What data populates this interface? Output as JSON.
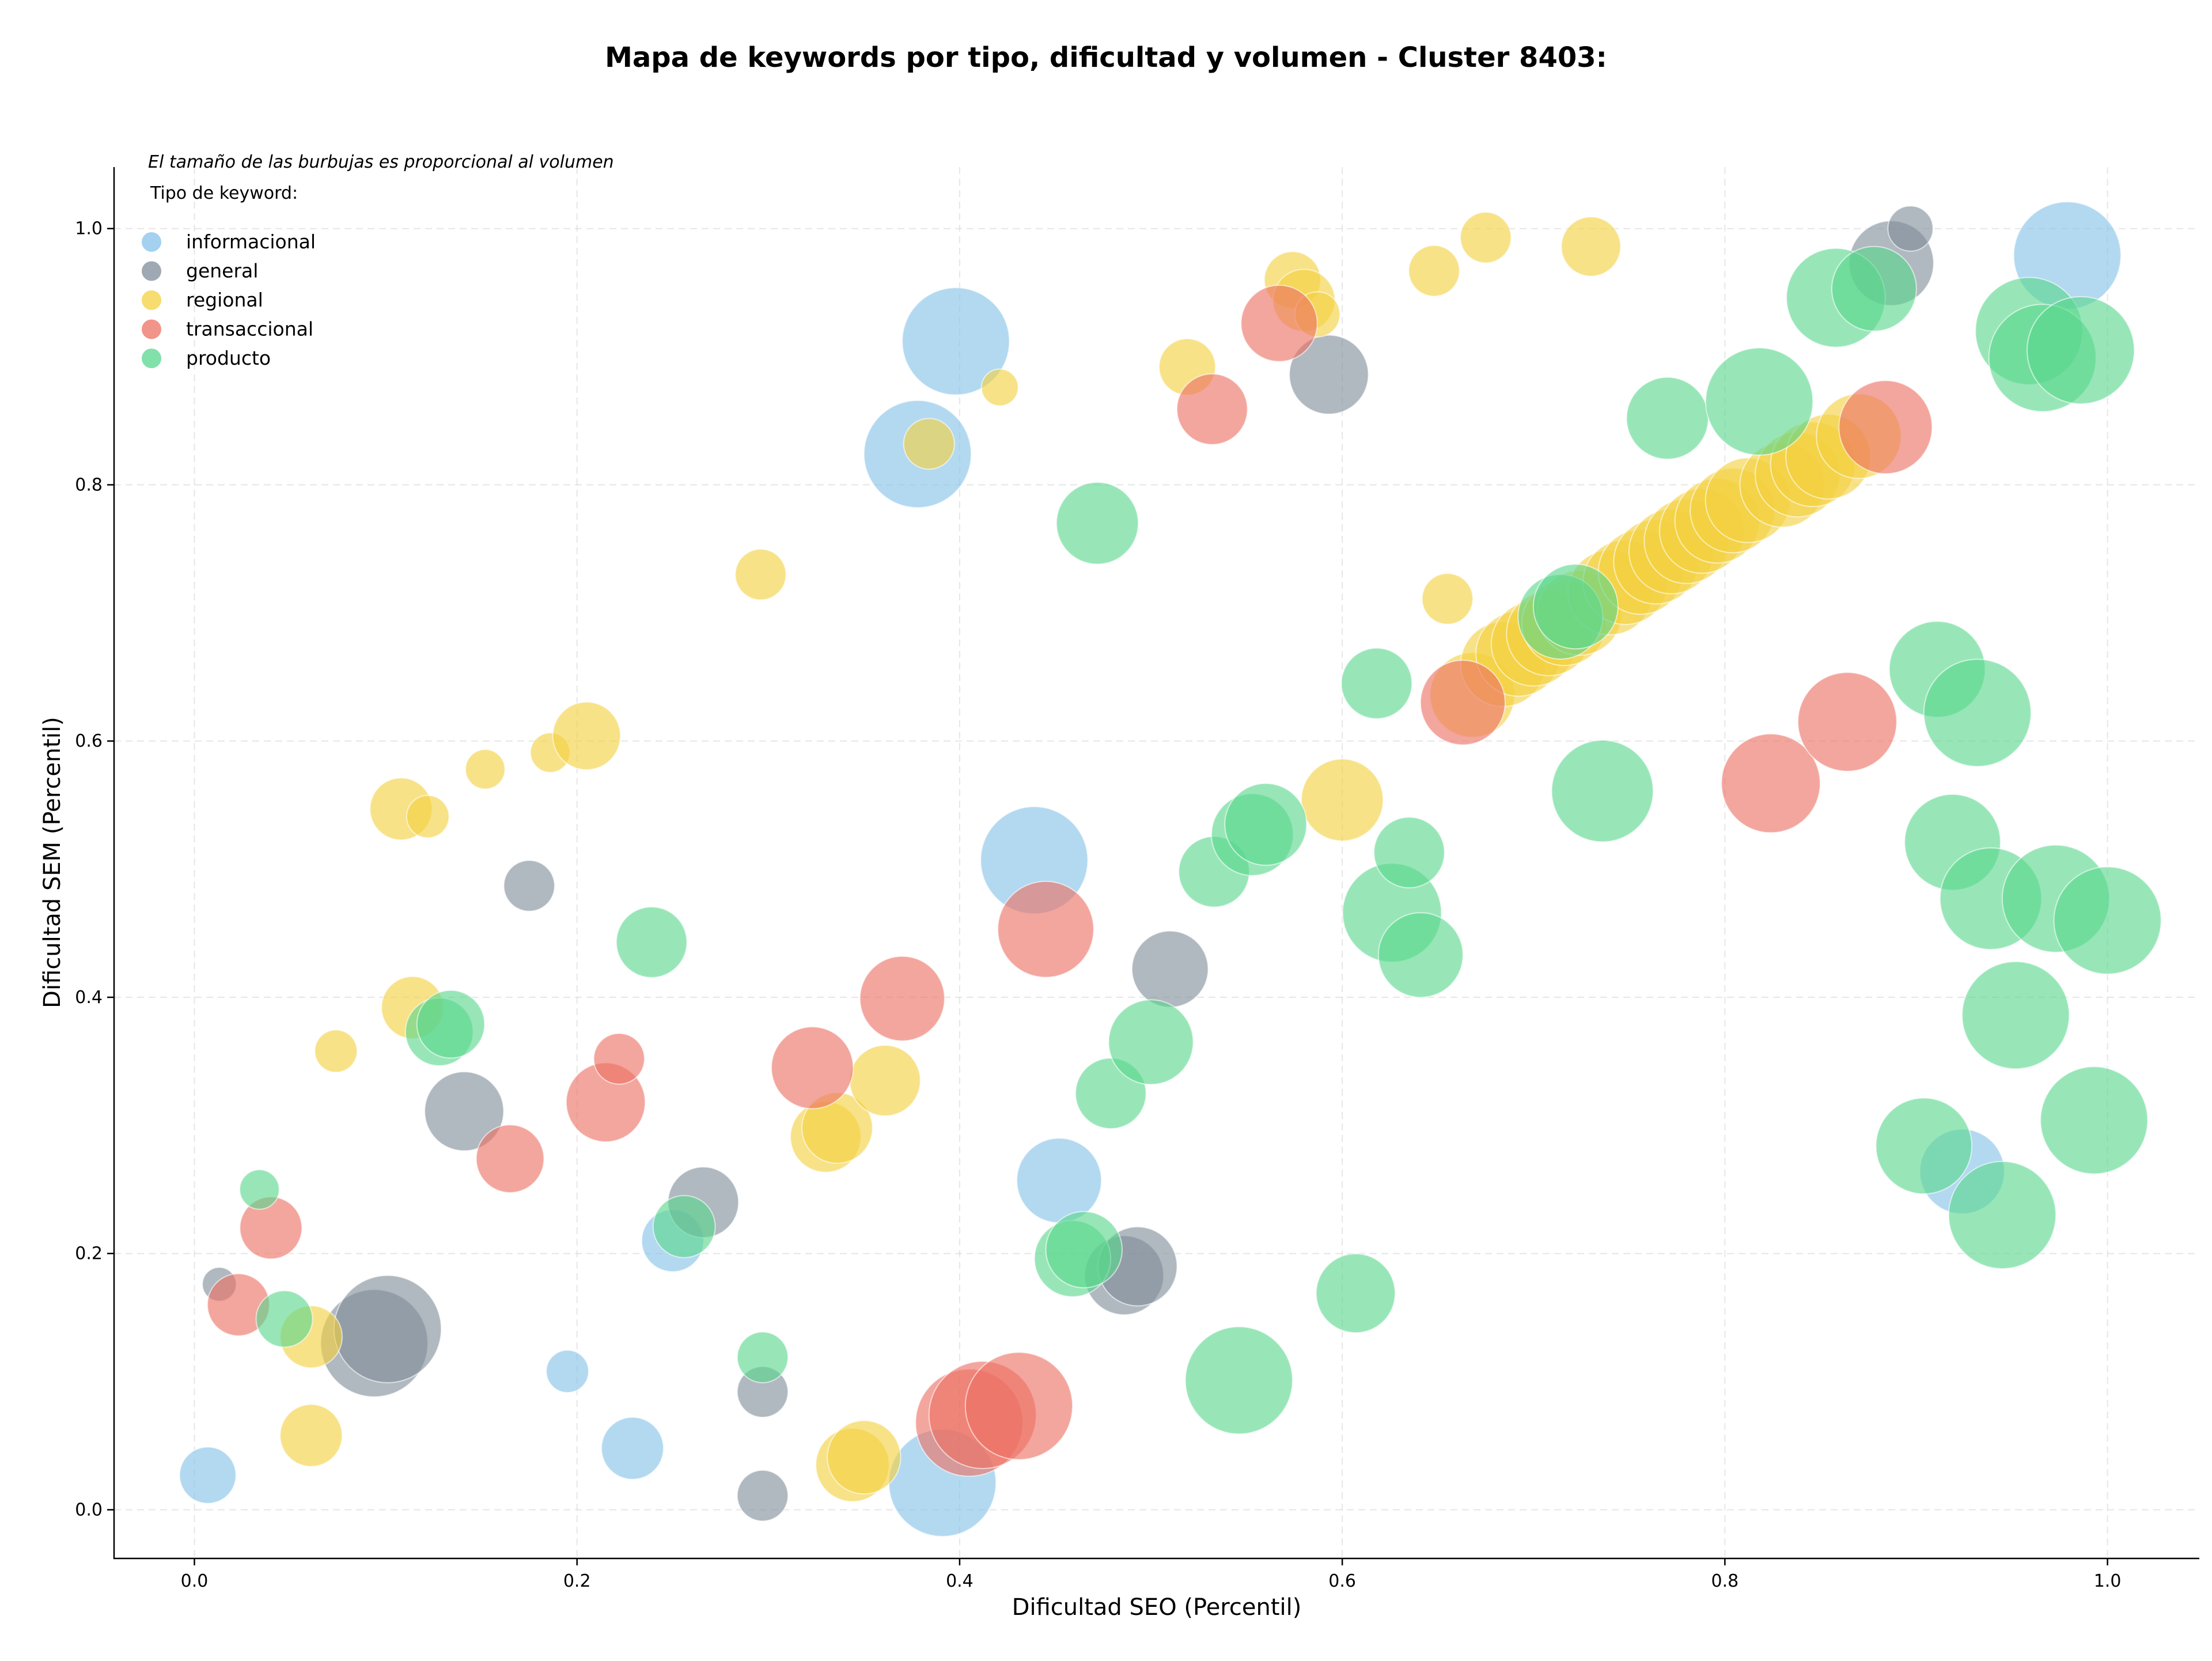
{
  "chart_data": {
    "type": "scatter",
    "title": "Mapa de keywords por tipo, dificultad y volumen - Cluster 8403:",
    "xlabel": "Dificultad SEO (Percentil)",
    "ylabel": "Dificultad SEM (Percentil)",
    "note": "El tamaño de las burbujas es proporcional al volumen",
    "legend_title": "Tipo de keyword:",
    "legend_position": "top-left",
    "grid": true,
    "xlim": [
      -0.042,
      1.048
    ],
    "ylim": [
      -0.038,
      1.048
    ],
    "xticks": [
      "0.0",
      "0.2",
      "0.4",
      "0.6",
      "0.8",
      "1.0"
    ],
    "yticks": [
      "0.0",
      "0.2",
      "0.4",
      "0.6",
      "0.8",
      "1.0"
    ],
    "series": [
      {
        "name": "informacional",
        "color": "#85c1e9",
        "points": [
          [
            0.007,
            0.027,
            20
          ],
          [
            0.195,
            0.108,
            15
          ],
          [
            0.229,
            0.048,
            22
          ],
          [
            0.25,
            0.21,
            22
          ],
          [
            0.398,
            0.912,
            38
          ],
          [
            0.378,
            0.824,
            38
          ],
          [
            0.391,
            0.021,
            38
          ],
          [
            0.439,
            0.507,
            38
          ],
          [
            0.452,
            0.257,
            30
          ],
          [
            0.924,
            0.264,
            30
          ],
          [
            0.979,
            0.979,
            38
          ]
        ]
      },
      {
        "name": "general",
        "color": "#7f8c9a",
        "points": [
          [
            0.013,
            0.176,
            12
          ],
          [
            0.094,
            0.13,
            38
          ],
          [
            0.101,
            0.141,
            38
          ],
          [
            0.141,
            0.311,
            28
          ],
          [
            0.175,
            0.487,
            18
          ],
          [
            0.266,
            0.24,
            25
          ],
          [
            0.297,
            0.092,
            18
          ],
          [
            0.297,
            0.011,
            18
          ],
          [
            0.486,
            0.183,
            28
          ],
          [
            0.493,
            0.19,
            28
          ],
          [
            0.51,
            0.422,
            27
          ],
          [
            0.593,
            0.886,
            28
          ],
          [
            0.887,
            0.973,
            30
          ],
          [
            0.897,
            1.0,
            16
          ]
        ]
      },
      {
        "name": "regional",
        "color": "#f4d03f",
        "points": [
          [
            0.061,
            0.135,
            22
          ],
          [
            0.061,
            0.058,
            22
          ],
          [
            0.074,
            0.358,
            15
          ],
          [
            0.108,
            0.547,
            22
          ],
          [
            0.114,
            0.392,
            22
          ],
          [
            0.122,
            0.541,
            15
          ],
          [
            0.152,
            0.578,
            14
          ],
          [
            0.186,
            0.591,
            14
          ],
          [
            0.205,
            0.604,
            24
          ],
          [
            0.296,
            0.73,
            18
          ],
          [
            0.33,
            0.291,
            25
          ],
          [
            0.336,
            0.298,
            25
          ],
          [
            0.344,
            0.035,
            26
          ],
          [
            0.35,
            0.041,
            26
          ],
          [
            0.361,
            0.335,
            25
          ],
          [
            0.384,
            0.832,
            18
          ],
          [
            0.421,
            0.876,
            13
          ],
          [
            0.519,
            0.892,
            20
          ],
          [
            0.574,
            0.96,
            20
          ],
          [
            0.58,
            0.944,
            22
          ],
          [
            0.587,
            0.933,
            16
          ],
          [
            0.6,
            0.554,
            29
          ],
          [
            0.648,
            0.967,
            18
          ],
          [
            0.655,
            0.711,
            18
          ],
          [
            0.675,
            0.993,
            18
          ],
          [
            0.73,
            0.986,
            21
          ],
          [
            0.668,
            0.636,
            30
          ],
          [
            0.684,
            0.66,
            30
          ],
          [
            0.692,
            0.668,
            30
          ],
          [
            0.7,
            0.676,
            30
          ],
          [
            0.708,
            0.684,
            30
          ],
          [
            0.716,
            0.692,
            30
          ],
          [
            0.724,
            0.7,
            30
          ],
          [
            0.74,
            0.716,
            30
          ],
          [
            0.748,
            0.724,
            30
          ],
          [
            0.756,
            0.732,
            30
          ],
          [
            0.764,
            0.74,
            30
          ],
          [
            0.772,
            0.748,
            30
          ],
          [
            0.78,
            0.756,
            30
          ],
          [
            0.788,
            0.764,
            30
          ],
          [
            0.796,
            0.772,
            30
          ],
          [
            0.804,
            0.78,
            30
          ],
          [
            0.812,
            0.788,
            30
          ],
          [
            0.83,
            0.8,
            30
          ],
          [
            0.838,
            0.808,
            30
          ],
          [
            0.846,
            0.816,
            30
          ],
          [
            0.854,
            0.822,
            30
          ],
          [
            0.87,
            0.838,
            30
          ]
        ]
      },
      {
        "name": "transaccional",
        "color": "#ec7063",
        "points": [
          [
            0.023,
            0.16,
            22
          ],
          [
            0.04,
            0.22,
            22
          ],
          [
            0.165,
            0.274,
            24
          ],
          [
            0.215,
            0.318,
            28
          ],
          [
            0.222,
            0.352,
            18
          ],
          [
            0.323,
            0.345,
            29
          ],
          [
            0.37,
            0.399,
            30
          ],
          [
            0.405,
            0.068,
            38
          ],
          [
            0.412,
            0.074,
            38
          ],
          [
            0.431,
            0.081,
            38
          ],
          [
            0.445,
            0.453,
            34
          ],
          [
            0.532,
            0.859,
            25
          ],
          [
            0.567,
            0.926,
            27
          ],
          [
            0.663,
            0.63,
            30
          ],
          [
            0.824,
            0.567,
            35
          ],
          [
            0.864,
            0.615,
            35
          ],
          [
            0.884,
            0.845,
            33
          ]
        ]
      },
      {
        "name": "producto",
        "color": "#58d68d",
        "points": [
          [
            0.034,
            0.25,
            14
          ],
          [
            0.047,
            0.149,
            20
          ],
          [
            0.128,
            0.373,
            24
          ],
          [
            0.134,
            0.379,
            24
          ],
          [
            0.239,
            0.443,
            25
          ],
          [
            0.256,
            0.221,
            22
          ],
          [
            0.297,
            0.119,
            18
          ],
          [
            0.459,
            0.196,
            27
          ],
          [
            0.465,
            0.203,
            27
          ],
          [
            0.479,
            0.325,
            25
          ],
          [
            0.472,
            0.77,
            29
          ],
          [
            0.5,
            0.365,
            30
          ],
          [
            0.533,
            0.498,
            25
          ],
          [
            0.546,
            0.101,
            38
          ],
          [
            0.553,
            0.527,
            29
          ],
          [
            0.56,
            0.535,
            29
          ],
          [
            0.607,
            0.169,
            28
          ],
          [
            0.618,
            0.645,
            25
          ],
          [
            0.626,
            0.466,
            35
          ],
          [
            0.635,
            0.513,
            25
          ],
          [
            0.641,
            0.433,
            30
          ],
          [
            0.714,
            0.697,
            30
          ],
          [
            0.722,
            0.705,
            30
          ],
          [
            0.736,
            0.561,
            36
          ],
          [
            0.77,
            0.852,
            29
          ],
          [
            0.818,
            0.865,
            38
          ],
          [
            0.858,
            0.946,
            35
          ],
          [
            0.878,
            0.953,
            30
          ],
          [
            0.904,
            0.284,
            34
          ],
          [
            0.911,
            0.656,
            34
          ],
          [
            0.919,
            0.521,
            34
          ],
          [
            0.932,
            0.622,
            38
          ],
          [
            0.939,
            0.477,
            36
          ],
          [
            0.945,
            0.23,
            38
          ],
          [
            0.952,
            0.386,
            38
          ],
          [
            0.959,
            0.92,
            38
          ],
          [
            0.966,
            0.899,
            38
          ],
          [
            0.973,
            0.477,
            38
          ],
          [
            0.986,
            0.905,
            38
          ],
          [
            0.993,
            0.304,
            38
          ],
          [
            1.0,
            0.46,
            38
          ]
        ]
      }
    ]
  }
}
